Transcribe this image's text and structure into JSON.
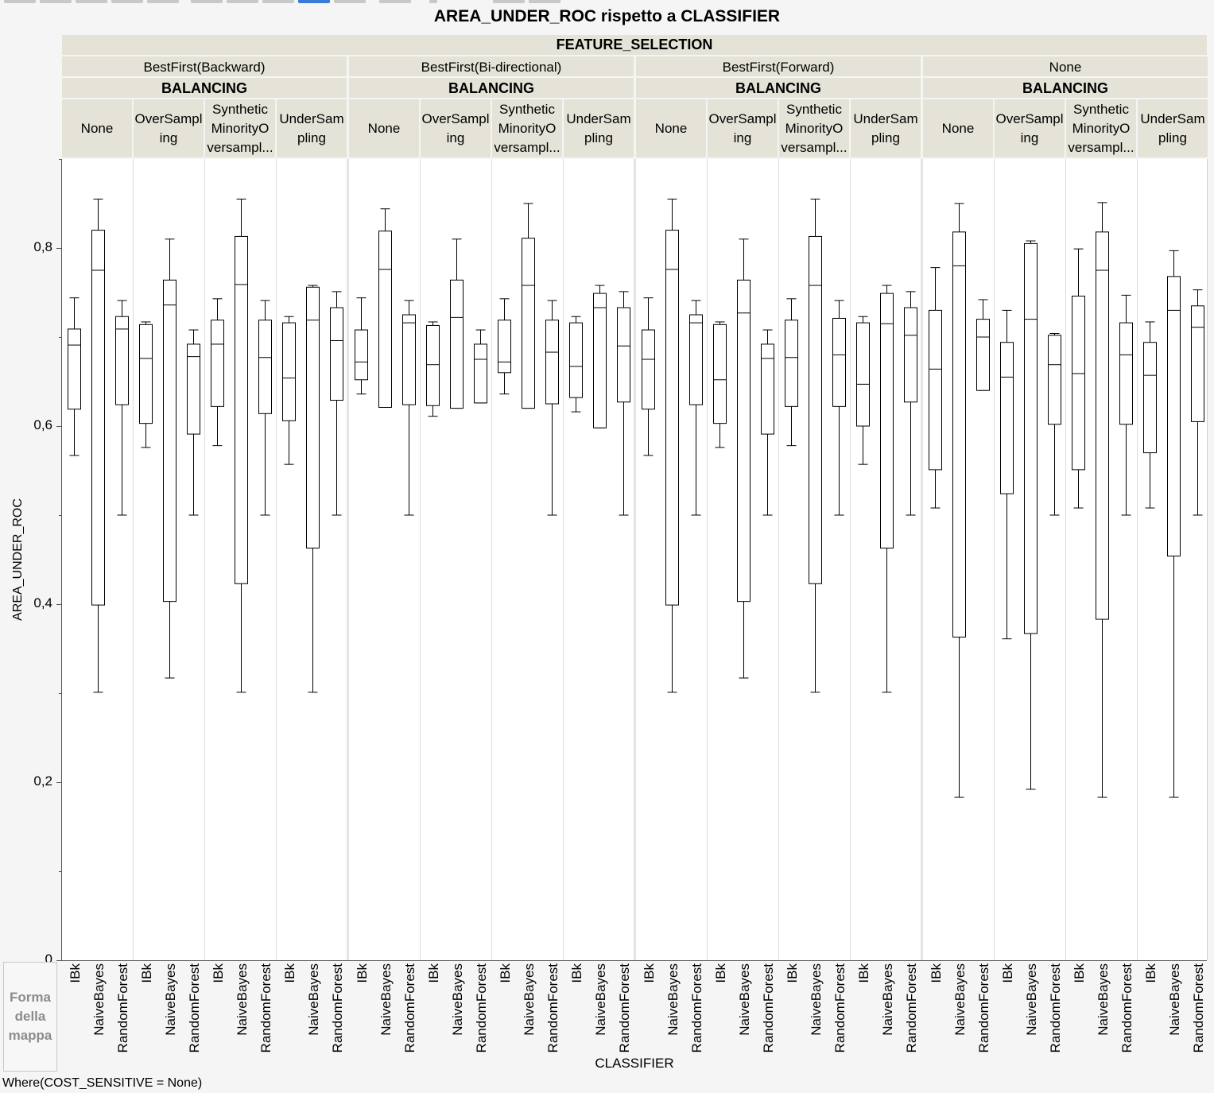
{
  "toolbar": {
    "button_count": 14,
    "selected_index": 8
  },
  "title": "AREA_UNDER_ROC rispetto a CLASSIFIER",
  "header": {
    "outer_label": "FEATURE_SELECTION",
    "inner_label": "BALANCING"
  },
  "groups": [
    "BestFirst(Backward)",
    "BestFirst(Bi-directional)",
    "BestFirst(Forward)",
    "None"
  ],
  "balancing": [
    "None",
    "OverSampl\ning",
    "Synthetic\nMinorityO\nversampl...",
    "UnderSam\npling"
  ],
  "classifiers": [
    "IBk",
    "NaiveBayes",
    "RandomForest"
  ],
  "y_axis": {
    "title": "AREA_UNDER_ROC",
    "ticks": [
      {
        "value": 0,
        "label": "0"
      },
      {
        "value": 0.2,
        "label": "0,2"
      },
      {
        "value": 0.4,
        "label": "0,4"
      },
      {
        "value": 0.6,
        "label": "0,6"
      },
      {
        "value": 0.8,
        "label": "0,8"
      }
    ]
  },
  "x_axis": {
    "title": "CLASSIFIER"
  },
  "legend_box": "Forma\ndella\nmappa",
  "footer": "Where(COST_SENSITIVE = None)",
  "chart_data": {
    "type": "box",
    "title": "AREA_UNDER_ROC rispetto a CLASSIFIER",
    "xlabel": "CLASSIFIER",
    "ylabel": "AREA_UNDER_ROC",
    "ylim": [
      0,
      0.9
    ],
    "facet_outer": "FEATURE_SELECTION",
    "facet_inner": "BALANCING",
    "box_fields": [
      "min",
      "q1",
      "median",
      "q3",
      "max"
    ],
    "boxes": [
      [
        [
          0.567,
          0.619,
          0.691,
          0.709,
          0.744
        ],
        [
          0.301,
          0.399,
          0.775,
          0.82,
          0.855
        ],
        [
          0.5,
          0.624,
          0.709,
          0.723,
          0.741
        ]
      ],
      [
        [
          0.576,
          0.603,
          0.676,
          0.714,
          0.717
        ],
        [
          0.317,
          0.403,
          0.736,
          0.764,
          0.81
        ],
        [
          0.5,
          0.591,
          0.678,
          0.692,
          0.708
        ]
      ],
      [
        [
          0.578,
          0.622,
          0.692,
          0.719,
          0.743
        ],
        [
          0.301,
          0.423,
          0.759,
          0.813,
          0.855
        ],
        [
          0.5,
          0.614,
          0.677,
          0.719,
          0.741
        ]
      ],
      [
        [
          0.557,
          0.606,
          0.654,
          0.716,
          0.723
        ],
        [
          0.301,
          0.463,
          0.719,
          0.756,
          0.758
        ],
        [
          0.5,
          0.629,
          0.696,
          0.733,
          0.751
        ]
      ],
      [
        [
          0.636,
          0.652,
          0.672,
          0.708,
          0.744
        ],
        [
          0.621,
          0.621,
          0.776,
          0.819,
          0.844
        ],
        [
          0.5,
          0.624,
          0.716,
          0.725,
          0.741
        ]
      ],
      [
        [
          0.611,
          0.623,
          0.669,
          0.713,
          0.717
        ],
        [
          0.62,
          0.62,
          0.722,
          0.764,
          0.81
        ],
        [
          0.626,
          0.626,
          0.675,
          0.692,
          0.708
        ]
      ],
      [
        [
          0.636,
          0.66,
          0.672,
          0.719,
          0.743
        ],
        [
          0.62,
          0.62,
          0.758,
          0.811,
          0.85
        ],
        [
          0.5,
          0.625,
          0.683,
          0.719,
          0.741
        ]
      ],
      [
        [
          0.616,
          0.632,
          0.667,
          0.716,
          0.723
        ],
        [
          0.598,
          0.598,
          0.733,
          0.749,
          0.758
        ],
        [
          0.5,
          0.627,
          0.69,
          0.733,
          0.751
        ]
      ],
      [
        [
          0.567,
          0.619,
          0.675,
          0.708,
          0.744
        ],
        [
          0.301,
          0.399,
          0.776,
          0.82,
          0.855
        ],
        [
          0.5,
          0.624,
          0.716,
          0.725,
          0.741
        ]
      ],
      [
        [
          0.576,
          0.603,
          0.652,
          0.714,
          0.717
        ],
        [
          0.317,
          0.403,
          0.727,
          0.764,
          0.81
        ],
        [
          0.5,
          0.591,
          0.676,
          0.692,
          0.708
        ]
      ],
      [
        [
          0.578,
          0.622,
          0.677,
          0.719,
          0.743
        ],
        [
          0.301,
          0.423,
          0.758,
          0.813,
          0.855
        ],
        [
          0.5,
          0.622,
          0.68,
          0.721,
          0.741
        ]
      ],
      [
        [
          0.557,
          0.6,
          0.647,
          0.716,
          0.723
        ],
        [
          0.301,
          0.463,
          0.715,
          0.749,
          0.758
        ],
        [
          0.5,
          0.627,
          0.702,
          0.733,
          0.751
        ]
      ],
      [
        [
          0.508,
          0.551,
          0.664,
          0.73,
          0.778
        ],
        [
          0.183,
          0.363,
          0.78,
          0.818,
          0.85
        ],
        [
          0.64,
          0.64,
          0.7,
          0.72,
          0.742
        ]
      ],
      [
        [
          0.361,
          0.524,
          0.655,
          0.694,
          0.73
        ],
        [
          0.192,
          0.367,
          0.72,
          0.805,
          0.808
        ],
        [
          0.5,
          0.602,
          0.669,
          0.702,
          0.704
        ]
      ],
      [
        [
          0.508,
          0.551,
          0.659,
          0.746,
          0.799
        ],
        [
          0.183,
          0.383,
          0.775,
          0.818,
          0.851
        ],
        [
          0.5,
          0.602,
          0.68,
          0.716,
          0.747
        ]
      ],
      [
        [
          0.508,
          0.57,
          0.657,
          0.694,
          0.717
        ],
        [
          0.183,
          0.454,
          0.73,
          0.768,
          0.797
        ],
        [
          0.5,
          0.605,
          0.711,
          0.735,
          0.753
        ]
      ]
    ]
  }
}
